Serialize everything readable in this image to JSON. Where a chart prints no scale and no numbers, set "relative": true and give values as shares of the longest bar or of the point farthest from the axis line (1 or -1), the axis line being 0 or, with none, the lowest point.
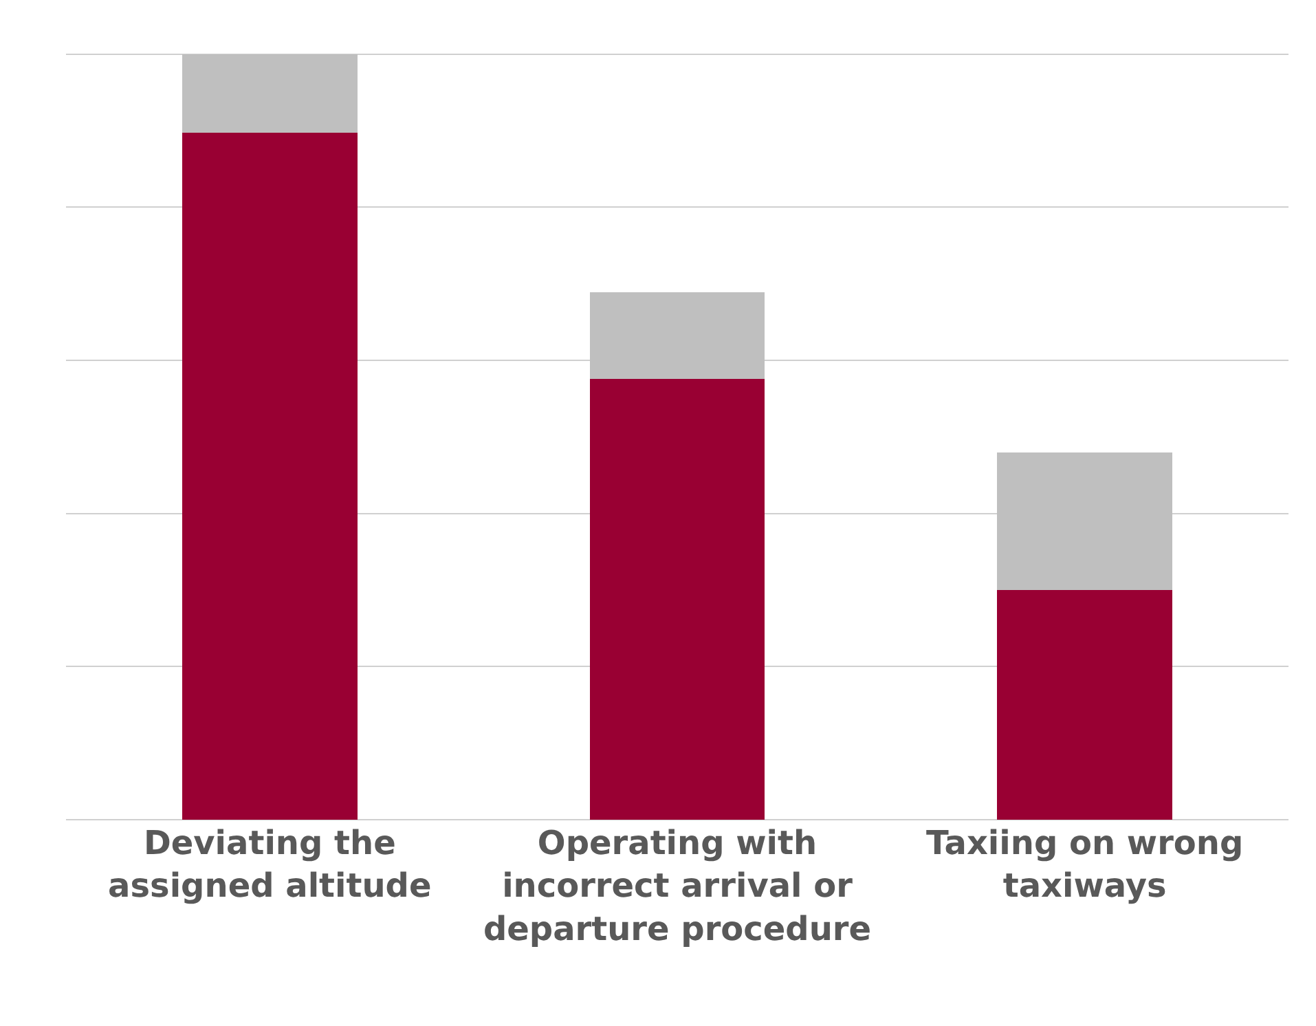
{
  "chart_data": {
    "type": "bar",
    "stacked": true,
    "relative": true,
    "grid": true,
    "categories": [
      "Deviating the assigned altitude",
      "Operating with incorrect arrival or departure procedure",
      "Taxiing on wrong taxiways"
    ],
    "series": [
      {
        "color": "#990033",
        "values": [
          0.897,
          0.576,
          0.3
        ]
      },
      {
        "color": "#bfbfbf",
        "values": [
          0.103,
          0.113,
          0.18
        ]
      }
    ]
  }
}
